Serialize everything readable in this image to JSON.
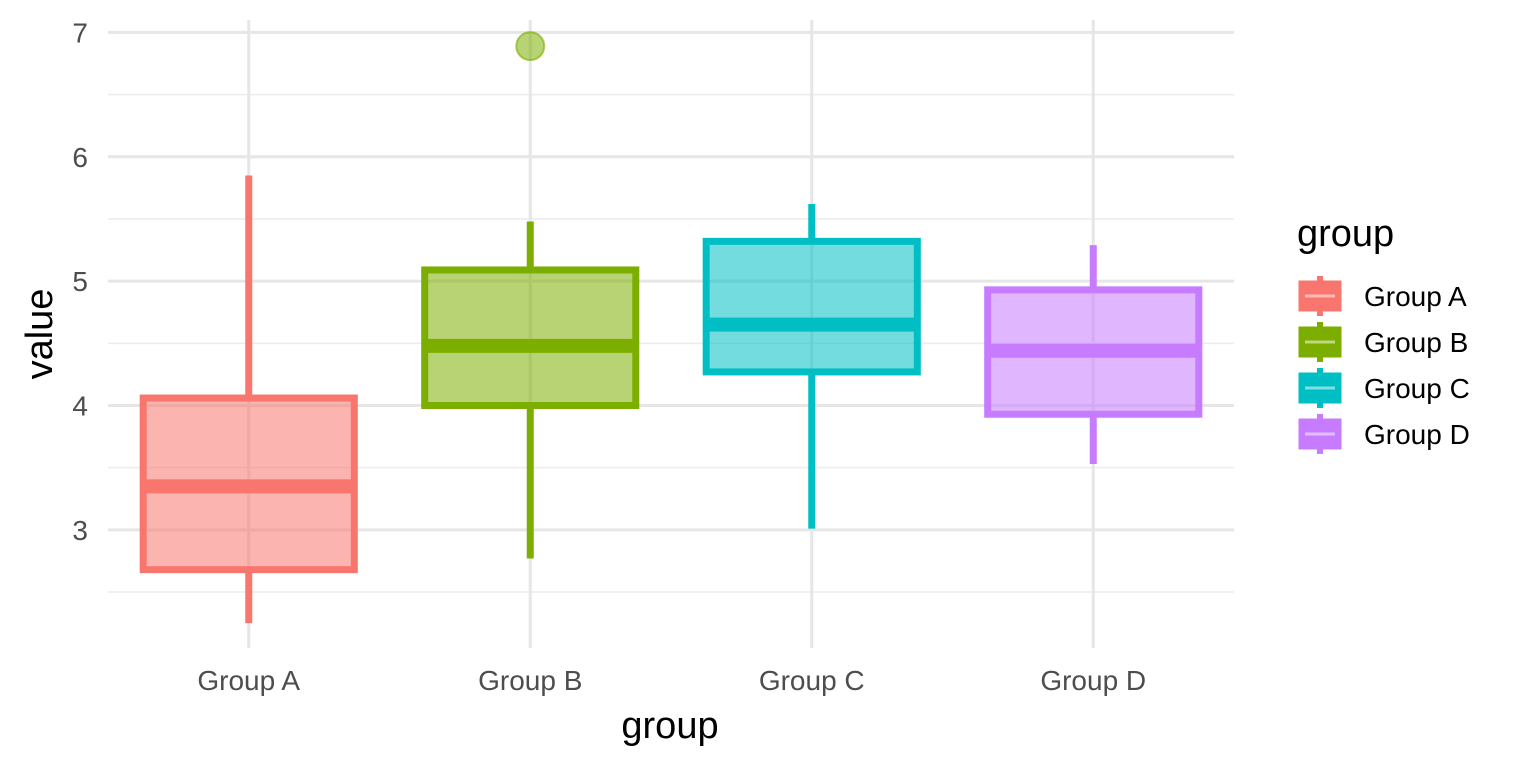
{
  "chart_data": {
    "type": "boxplot",
    "xlabel": "group",
    "ylabel": "value",
    "categories": [
      "Group A",
      "Group B",
      "Group C",
      "Group D"
    ],
    "ylim": [
      2.05,
      7.1
    ],
    "y_ticks": [
      3,
      4,
      5,
      6,
      7
    ],
    "grid": true,
    "legend": {
      "title": "group",
      "position": "right",
      "entries": [
        "Group A",
        "Group B",
        "Group C",
        "Group D"
      ]
    },
    "series": [
      {
        "name": "Group A",
        "color": "#F8766D",
        "whisker_low": 2.25,
        "q1": 2.68,
        "median": 3.35,
        "q3": 4.06,
        "whisker_high": 5.85,
        "outliers": []
      },
      {
        "name": "Group B",
        "color": "#7CAE00",
        "whisker_low": 2.77,
        "q1": 4.0,
        "median": 4.48,
        "q3": 5.09,
        "whisker_high": 5.48,
        "outliers": [
          6.89
        ]
      },
      {
        "name": "Group C",
        "color": "#00BFC4",
        "whisker_low": 3.01,
        "q1": 4.27,
        "median": 4.65,
        "q3": 5.32,
        "whisker_high": 5.62,
        "outliers": []
      },
      {
        "name": "Group D",
        "color": "#C77CFF",
        "whisker_low": 3.53,
        "q1": 3.93,
        "median": 4.44,
        "q3": 4.93,
        "whisker_high": 5.29,
        "outliers": []
      }
    ]
  }
}
